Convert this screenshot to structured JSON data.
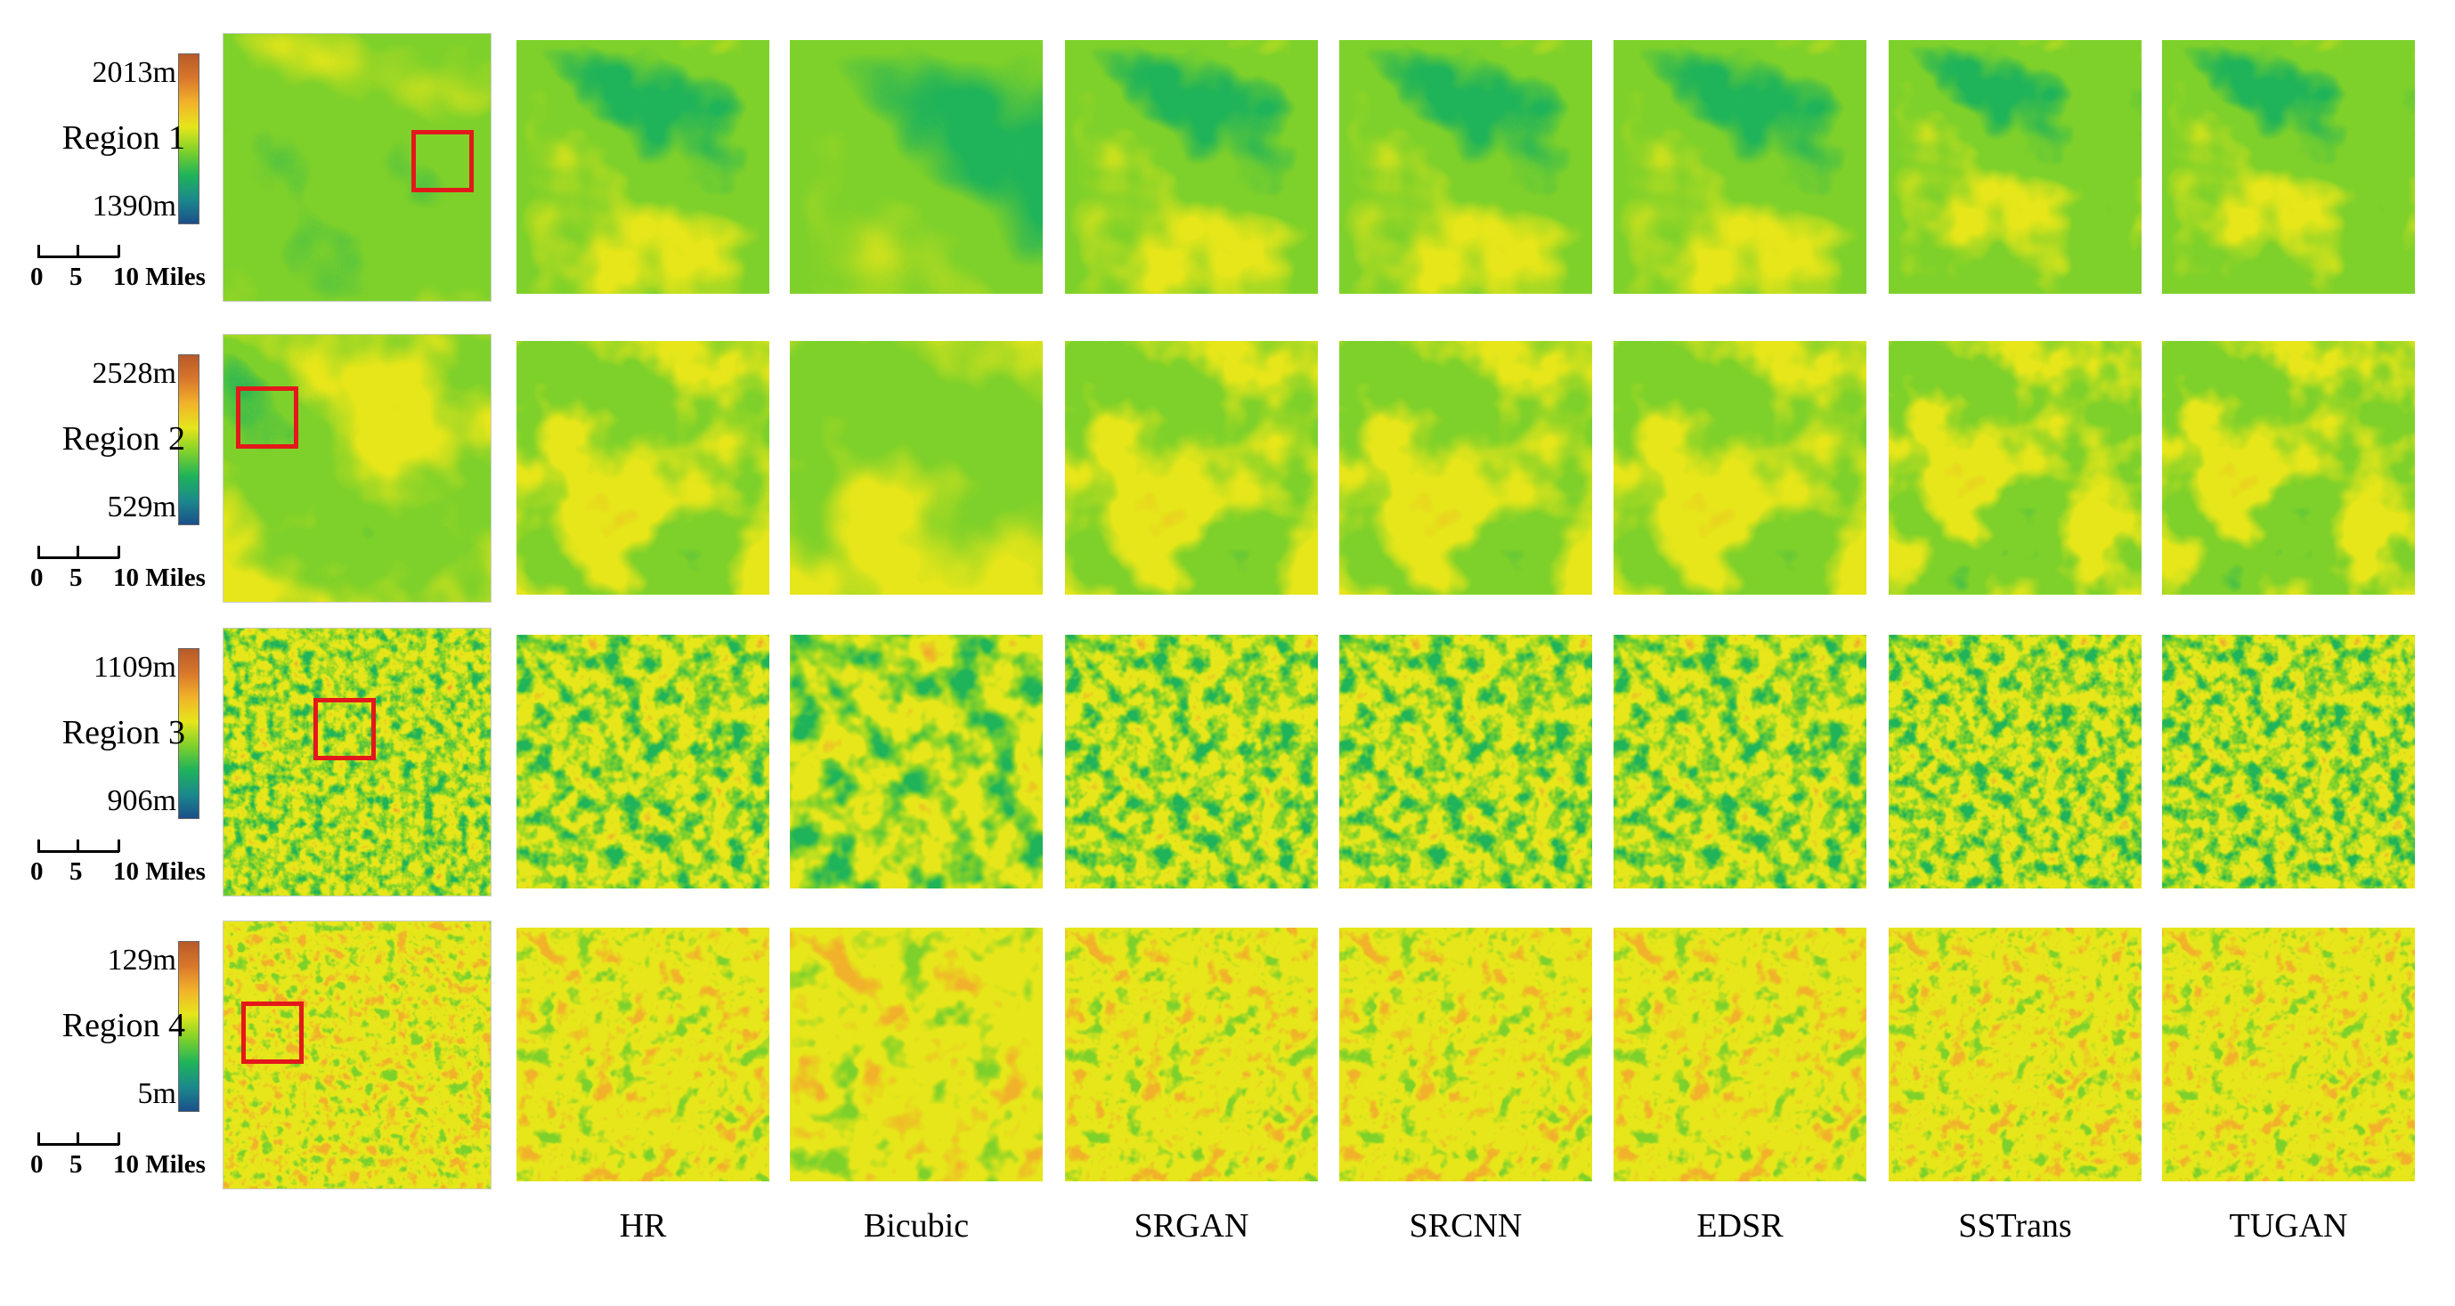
{
  "colormap": [
    "#1b4f8a",
    "#1b8a8c",
    "#1fb35a",
    "#7fd12a",
    "#e6e61a",
    "#f2b22a",
    "#d9772b",
    "#b85a2a"
  ],
  "scale_bar": {
    "zero": "0",
    "five": "5",
    "ten": "10 Miles"
  },
  "regions": [
    {
      "label": "Region 1",
      "max": "2013m",
      "min": "1390m",
      "texture": "smooth-valley"
    },
    {
      "label": "Region 2",
      "max": "2528m",
      "min": "529m",
      "texture": "smooth-ridge"
    },
    {
      "label": "Region 3",
      "max": "1109m",
      "min": "906m",
      "texture": "noisy-mid"
    },
    {
      "label": "Region 4",
      "max": "129m",
      "min": "5m",
      "texture": "noisy-high"
    }
  ],
  "methods": [
    "HR",
    "Bicubic",
    "SRGAN",
    "SRCNN",
    "EDSR",
    "SSTrans",
    "TUGAN"
  ]
}
